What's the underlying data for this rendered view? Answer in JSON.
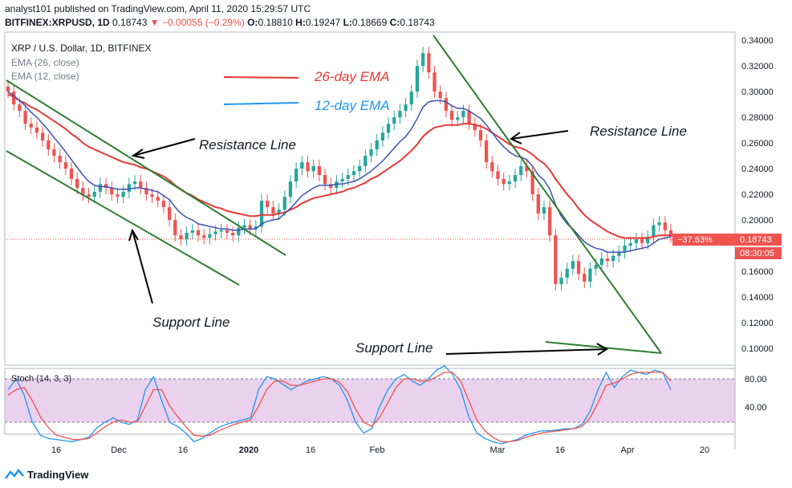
{
  "header": {
    "publisher": "analyst101 published on TradingView.com, April 11, 2020 15:29:57 UTC",
    "symbol": "BITFINEX:XRPUSD, 1D",
    "last": "0.18743",
    "change": "−0.00055 (−0.29%)",
    "open": "0.18810",
    "high": "0.19247",
    "low": "0.18669",
    "close": "0.18743"
  },
  "legend": {
    "title": "XRP / U.S. Dollar, 1D, BITFINEX",
    "ema26": "EMA (26, close)",
    "ema12": "EMA (12, close)"
  },
  "annotations": {
    "ema26_label": "26-day EMA",
    "ema12_label": "12-day EMA",
    "resistance_left": "Resistance Line",
    "resistance_right": "Resistance Line",
    "support_left": "Support Line",
    "support_right": "Support Line"
  },
  "price_badge": {
    "pct": "−37.63%",
    "price": "0.18743",
    "countdown": "08:30:05"
  },
  "stoch": {
    "label": "Stoch (14, 3, 3)",
    "levels": [
      "80.00",
      "40.00"
    ]
  },
  "footer": {
    "brand": "TradingView"
  },
  "colors": {
    "up": "#26a69a",
    "down": "#ef5350",
    "ema26": "#e53935",
    "ema12": "#3f51b5",
    "trend": "#2e7d32",
    "stoch_fill": "#e1bee7",
    "stoch_k": "#2196f3",
    "stoch_d": "#ef5350"
  },
  "chart_data": {
    "type": "candlestick",
    "title": "XRP / U.S. Dollar, 1D, BITFINEX",
    "y_ticks": [
      "0.34000",
      "0.32000",
      "0.30000",
      "0.28000",
      "0.26000",
      "0.24000",
      "0.22000",
      "0.20000",
      "0.16000",
      "0.14000",
      "0.12000",
      "0.10000"
    ],
    "ylim": [
      0.095,
      0.342
    ],
    "x_ticks": [
      "16",
      "Dec",
      "16",
      "2020",
      "16",
      "Feb",
      "Mar",
      "16",
      "Apr",
      "20"
    ],
    "closes": [
      0.3,
      0.29,
      0.285,
      0.275,
      0.272,
      0.268,
      0.262,
      0.255,
      0.25,
      0.245,
      0.24,
      0.232,
      0.225,
      0.22,
      0.218,
      0.222,
      0.228,
      0.225,
      0.22,
      0.218,
      0.222,
      0.228,
      0.23,
      0.225,
      0.22,
      0.218,
      0.215,
      0.21,
      0.2,
      0.188,
      0.185,
      0.19,
      0.192,
      0.188,
      0.186,
      0.189,
      0.191,
      0.192,
      0.19,
      0.188,
      0.194,
      0.196,
      0.193,
      0.195,
      0.215,
      0.21,
      0.205,
      0.208,
      0.218,
      0.23,
      0.24,
      0.245,
      0.238,
      0.242,
      0.235,
      0.228,
      0.225,
      0.23,
      0.232,
      0.235,
      0.238,
      0.242,
      0.25,
      0.255,
      0.262,
      0.268,
      0.275,
      0.28,
      0.285,
      0.29,
      0.3,
      0.32,
      0.33,
      0.315,
      0.3,
      0.295,
      0.285,
      0.278,
      0.28,
      0.285,
      0.275,
      0.27,
      0.262,
      0.245,
      0.238,
      0.232,
      0.228,
      0.23,
      0.235,
      0.242,
      0.238,
      0.22,
      0.205,
      0.21,
      0.188,
      0.15,
      0.155,
      0.162,
      0.168,
      0.158,
      0.152,
      0.162,
      0.165,
      0.17,
      0.168,
      0.172,
      0.175,
      0.18,
      0.182,
      0.185,
      0.182,
      0.187,
      0.196,
      0.198,
      0.192,
      0.187
    ],
    "ema26": [
      0.298,
      0.296,
      0.293,
      0.291,
      0.288,
      0.286,
      0.283,
      0.28,
      0.277,
      0.274,
      0.271,
      0.267,
      0.264,
      0.26,
      0.257,
      0.255,
      0.253,
      0.251,
      0.249,
      0.247,
      0.245,
      0.244,
      0.243,
      0.241,
      0.24,
      0.238,
      0.236,
      0.234,
      0.231,
      0.227,
      0.224,
      0.221,
      0.219,
      0.216,
      0.214,
      0.212,
      0.21,
      0.209,
      0.207,
      0.206,
      0.205,
      0.204,
      0.203,
      0.203,
      0.204,
      0.204,
      0.204,
      0.205,
      0.206,
      0.208,
      0.21,
      0.213,
      0.215,
      0.217,
      0.218,
      0.219,
      0.22,
      0.221,
      0.222,
      0.224,
      0.225,
      0.227,
      0.229,
      0.232,
      0.234,
      0.237,
      0.24,
      0.243,
      0.246,
      0.25,
      0.254,
      0.259,
      0.265,
      0.269,
      0.272,
      0.273,
      0.274,
      0.274,
      0.274,
      0.275,
      0.275,
      0.274,
      0.273,
      0.271,
      0.268,
      0.265,
      0.262,
      0.259,
      0.257,
      0.256,
      0.254,
      0.251,
      0.247,
      0.244,
      0.239,
      0.232,
      0.226,
      0.22,
      0.215,
      0.209,
      0.204,
      0.2,
      0.197,
      0.194,
      0.191,
      0.189,
      0.187,
      0.186,
      0.186,
      0.186,
      0.186,
      0.186,
      0.187,
      0.188,
      0.188,
      0.188
    ],
    "ema12": [
      0.3,
      0.297,
      0.293,
      0.289,
      0.284,
      0.28,
      0.275,
      0.27,
      0.264,
      0.259,
      0.253,
      0.247,
      0.241,
      0.235,
      0.23,
      0.227,
      0.226,
      0.226,
      0.225,
      0.224,
      0.224,
      0.224,
      0.225,
      0.225,
      0.224,
      0.223,
      0.222,
      0.219,
      0.216,
      0.21,
      0.205,
      0.202,
      0.2,
      0.197,
      0.196,
      0.195,
      0.194,
      0.193,
      0.193,
      0.192,
      0.192,
      0.193,
      0.193,
      0.193,
      0.197,
      0.199,
      0.2,
      0.201,
      0.205,
      0.209,
      0.214,
      0.219,
      0.222,
      0.225,
      0.227,
      0.227,
      0.227,
      0.228,
      0.228,
      0.229,
      0.23,
      0.232,
      0.235,
      0.238,
      0.242,
      0.246,
      0.251,
      0.256,
      0.261,
      0.265,
      0.271,
      0.279,
      0.288,
      0.292,
      0.293,
      0.293,
      0.292,
      0.289,
      0.287,
      0.287,
      0.285,
      0.282,
      0.279,
      0.274,
      0.268,
      0.262,
      0.257,
      0.253,
      0.25,
      0.249,
      0.247,
      0.242,
      0.235,
      0.231,
      0.224,
      0.212,
      0.203,
      0.197,
      0.193,
      0.188,
      0.183,
      0.18,
      0.178,
      0.177,
      0.175,
      0.175,
      0.175,
      0.175,
      0.176,
      0.177,
      0.178,
      0.179,
      0.182,
      0.185,
      0.186,
      0.187
    ],
    "stoch_k": [
      70,
      80,
      65,
      40,
      28,
      25,
      24,
      23,
      22,
      24,
      26,
      35,
      40,
      44,
      40,
      38,
      42,
      70,
      82,
      60,
      40,
      36,
      30,
      22,
      25,
      30,
      35,
      38,
      40,
      42,
      44,
      70,
      82,
      80,
      75,
      70,
      74,
      78,
      80,
      82,
      80,
      74,
      60,
      40,
      30,
      34,
      55,
      70,
      80,
      84,
      78,
      74,
      80,
      88,
      92,
      84,
      70,
      45,
      30,
      25,
      22,
      20,
      22,
      24,
      28,
      30,
      32,
      32,
      33,
      34,
      34,
      38,
      50,
      70,
      86,
      72,
      82,
      88,
      86,
      84,
      88,
      86,
      70
    ],
    "stoch_d": [
      65,
      70,
      72,
      60,
      45,
      35,
      28,
      26,
      24,
      24,
      25,
      30,
      36,
      40,
      42,
      40,
      40,
      55,
      70,
      70,
      55,
      45,
      36,
      28,
      27,
      28,
      32,
      35,
      38,
      40,
      42,
      55,
      70,
      78,
      78,
      74,
      74,
      76,
      78,
      80,
      80,
      77,
      68,
      52,
      40,
      36,
      45,
      58,
      72,
      80,
      80,
      78,
      78,
      82,
      86,
      86,
      78,
      60,
      42,
      32,
      26,
      22,
      22,
      23,
      26,
      28,
      30,
      31,
      32,
      33,
      34,
      36,
      44,
      58,
      74,
      76,
      80,
      84,
      86,
      86,
      86,
      86,
      78
    ]
  }
}
